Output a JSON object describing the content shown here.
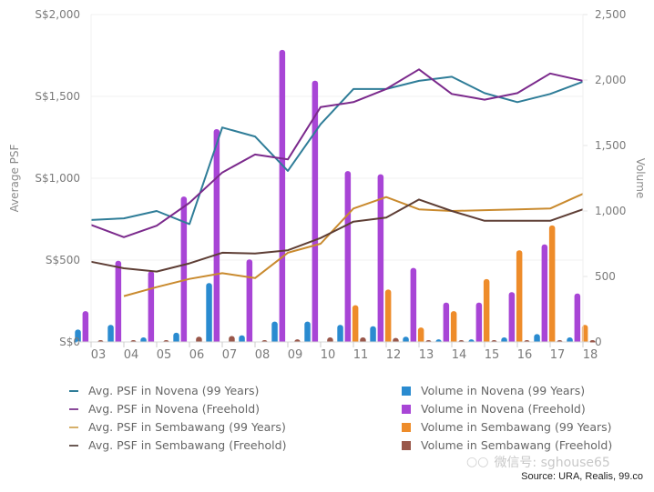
{
  "chart_data": {
    "type": "bar",
    "title": "",
    "xlabel": "",
    "ylabel": "Average PSF",
    "y2label": "Volume",
    "categories": [
      "03",
      "04",
      "05",
      "06",
      "07",
      "08",
      "09",
      "10",
      "11",
      "12",
      "13",
      "14",
      "15",
      "16",
      "17",
      "18"
    ],
    "ylim": [
      0,
      2000
    ],
    "y2lim": [
      0,
      2500
    ],
    "yticks": [
      "S$0",
      "S$500",
      "S$1,000",
      "S$1,500",
      "S$2,000"
    ],
    "ytick_values": [
      0,
      500,
      1000,
      1500,
      2000
    ],
    "y2ticks": [
      "0",
      "500",
      "1,000",
      "1,500",
      "2,000",
      "2,500"
    ],
    "y2tick_values": [
      0,
      500,
      1000,
      1500,
      2000,
      2500
    ],
    "grid": true,
    "legend_position": "bottom",
    "bar_series": [
      {
        "name": "Volume in Novena (99 Years)",
        "color": "#2a8bd0",
        "values": [
          95,
          130,
          35,
          70,
          450,
          50,
          155,
          155,
          130,
          120,
          40,
          20,
          20,
          35,
          60,
          35
        ]
      },
      {
        "name": "Volume in Novena (Freehold)",
        "color": "#a845d6",
        "values": [
          235,
          620,
          540,
          1110,
          1625,
          630,
          2230,
          1995,
          1305,
          1280,
          565,
          300,
          300,
          380,
          745,
          370
        ]
      },
      {
        "name": "Volume in Sembawang (99 Years)",
        "color": "#ee8c2a",
        "values": [
          0,
          0,
          0,
          0,
          0,
          0,
          0,
          0,
          280,
          400,
          110,
          235,
          480,
          700,
          890,
          130
        ]
      },
      {
        "name": "Volume in Sembawang (Freehold)",
        "color": "#99574a",
        "values": [
          5,
          10,
          10,
          40,
          45,
          10,
          20,
          35,
          35,
          30,
          3,
          3,
          5,
          5,
          5,
          3
        ]
      }
    ],
    "line_series": [
      {
        "name": "Avg. PSF in Novena (99 Years)",
        "color": "#2f7d98",
        "values": [
          745,
          755,
          800,
          720,
          1310,
          1255,
          1045,
          1330,
          1545,
          1545,
          1595,
          1620,
          1520,
          1465,
          1515,
          1590
        ]
      },
      {
        "name": "Avg. PSF in Novena (Freehold)",
        "color": "#7b2a8c",
        "values": [
          715,
          640,
          710,
          850,
          1035,
          1145,
          1115,
          1435,
          1465,
          1545,
          1665,
          1515,
          1480,
          1520,
          1640,
          1595
        ]
      },
      {
        "name": "Avg. PSF in Sembawang (99 Years)",
        "color": "#c98a2e",
        "values": [
          null,
          280,
          335,
          385,
          420,
          390,
          545,
          600,
          815,
          885,
          810,
          800,
          805,
          810,
          815,
          905
        ]
      },
      {
        "name": "Avg. PSF in Sembawang (Freehold)",
        "color": "#5e3e35",
        "values": [
          490,
          450,
          430,
          480,
          545,
          540,
          560,
          635,
          735,
          760,
          870,
          800,
          740,
          740,
          740,
          810
        ]
      }
    ]
  },
  "legend": {
    "left": [
      {
        "label": "Avg. PSF in Novena (99 Years)",
        "color": "#2f7d98"
      },
      {
        "label": "Avg. PSF in Novena (Freehold)",
        "color": "#8a4a9a"
      },
      {
        "label": "Avg. PSF in Sembawang (99 Years)",
        "color": "#d6b06a"
      },
      {
        "label": "Avg. PSF in Sembawang (Freehold)",
        "color": "#6b5a55"
      }
    ],
    "right": [
      {
        "label": "Volume in Novena (99 Years)",
        "color": "#2a8bd0"
      },
      {
        "label": "Volume in Novena (Freehold)",
        "color": "#a845d6"
      },
      {
        "label": "Volume in Sembawang (99 Years)",
        "color": "#ee8c2a"
      },
      {
        "label": "Volume in Sembawang (Freehold)",
        "color": "#99574a"
      }
    ]
  },
  "watermark": {
    "text": "微信号: sghouse65",
    "icon": "wechat-icon"
  },
  "source": "Source: URA, Realis, 99.co"
}
